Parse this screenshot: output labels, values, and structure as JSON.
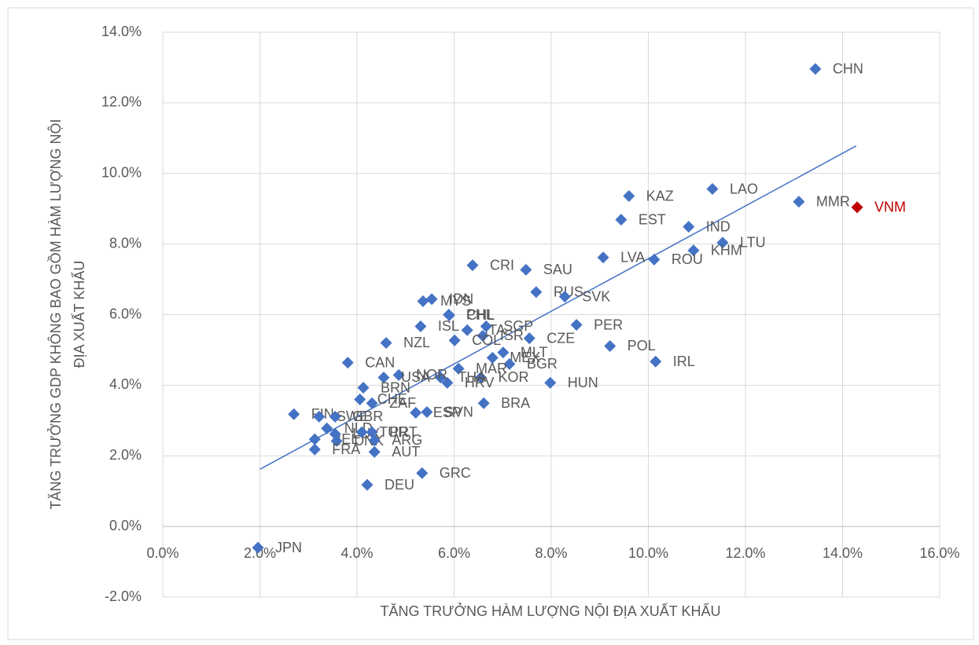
{
  "chart_data": {
    "type": "scatter",
    "xlabel": "TĂNG TRƯỞNG HÀM LƯỢNG NỘI ĐỊA XUẤT KHẨU",
    "ylabel": [
      "TĂNG TRƯỞNG GDP KHÔNG BAO GỒM HÀM LƯỢNG NỘI",
      "ĐỊA XUẤT KHẨU"
    ],
    "xlim": [
      0,
      16
    ],
    "ylim": [
      -2,
      14
    ],
    "xticks": [
      {
        "value": 0,
        "label": "0.0%"
      },
      {
        "value": 2,
        "label": "2.0%"
      },
      {
        "value": 4,
        "label": "4.0%"
      },
      {
        "value": 6,
        "label": "6.0%"
      },
      {
        "value": 8,
        "label": "8.0%"
      },
      {
        "value": 10,
        "label": "10.0%"
      },
      {
        "value": 12,
        "label": "12.0%"
      },
      {
        "value": 14,
        "label": "14.0%"
      },
      {
        "value": 16,
        "label": "16.0%"
      }
    ],
    "yticks": [
      {
        "value": -2,
        "label": "-2.0%"
      },
      {
        "value": 0,
        "label": "0.0%"
      },
      {
        "value": 2,
        "label": "2.0%"
      },
      {
        "value": 4,
        "label": "4.0%"
      },
      {
        "value": 6,
        "label": "6.0%"
      },
      {
        "value": 8,
        "label": "8.0%"
      },
      {
        "value": 10,
        "label": "10.0%"
      },
      {
        "value": 12,
        "label": "12.0%"
      },
      {
        "value": 14,
        "label": "14.0%"
      }
    ],
    "grid": true,
    "color": "#4472c4",
    "label_color": "#595959",
    "trendline": {
      "x": [
        2.0,
        14.28
      ],
      "y": [
        1.62,
        10.78
      ],
      "color": "#4472c4"
    },
    "points": [
      {
        "label": "CHN",
        "x": 13.44,
        "y": 12.96
      },
      {
        "label": "KAZ",
        "x": 9.6,
        "y": 9.36
      },
      {
        "label": "LAO",
        "x": 11.32,
        "y": 9.56
      },
      {
        "label": "MMR",
        "x": 13.1,
        "y": 9.2
      },
      {
        "label": "VNM",
        "x": 14.3,
        "y": 9.04,
        "color": "#c00000"
      },
      {
        "label": "EST",
        "x": 9.44,
        "y": 8.69
      },
      {
        "label": "IND",
        "x": 10.83,
        "y": 8.49
      },
      {
        "label": "LTU",
        "x": 11.53,
        "y": 8.04
      },
      {
        "label": "KHM",
        "x": 10.93,
        "y": 7.82
      },
      {
        "label": "LVA",
        "x": 9.07,
        "y": 7.62
      },
      {
        "label": "ROU",
        "x": 10.12,
        "y": 7.56
      },
      {
        "label": "CRI",
        "x": 6.38,
        "y": 7.4
      },
      {
        "label": "SAU",
        "x": 7.48,
        "y": 7.27
      },
      {
        "label": "RUS",
        "x": 7.69,
        "y": 6.64
      },
      {
        "label": "SVK",
        "x": 8.28,
        "y": 6.51
      },
      {
        "label": "MYS",
        "x": 5.36,
        "y": 6.38
      },
      {
        "label": "IDN",
        "x": 5.54,
        "y": 6.44
      },
      {
        "label": "PHL",
        "x": 5.89,
        "y": 6.0
      },
      {
        "label": "CHL",
        "x": 5.9,
        "y": 5.98
      },
      {
        "label": "ISL",
        "x": 5.31,
        "y": 5.67
      },
      {
        "label": "NZL",
        "x": 4.6,
        "y": 5.2
      },
      {
        "label": "ITA",
        "x": 6.27,
        "y": 5.56
      },
      {
        "label": "ISR",
        "x": 6.59,
        "y": 5.4
      },
      {
        "label": "SGP",
        "x": 6.66,
        "y": 5.67
      },
      {
        "label": "COL",
        "x": 6.01,
        "y": 5.27
      },
      {
        "label": "CZE",
        "x": 7.55,
        "y": 5.33
      },
      {
        "label": "PER",
        "x": 8.52,
        "y": 5.71
      },
      {
        "label": "POL",
        "x": 9.21,
        "y": 5.11
      },
      {
        "label": "IRL",
        "x": 10.15,
        "y": 4.67
      },
      {
        "label": "HUN",
        "x": 7.98,
        "y": 4.07
      },
      {
        "label": "BRA",
        "x": 6.61,
        "y": 3.49
      },
      {
        "label": "MLT",
        "x": 7.01,
        "y": 4.93
      },
      {
        "label": "MEX",
        "x": 6.79,
        "y": 4.78
      },
      {
        "label": "BGR",
        "x": 7.14,
        "y": 4.6
      },
      {
        "label": "KOR",
        "x": 6.55,
        "y": 4.22
      },
      {
        "label": "MAR",
        "x": 6.09,
        "y": 4.47
      },
      {
        "label": "THA",
        "x": 5.72,
        "y": 4.22
      },
      {
        "label": "HRV",
        "x": 5.86,
        "y": 4.07
      },
      {
        "label": "NOR",
        "x": 4.86,
        "y": 4.29
      },
      {
        "label": "USA",
        "x": 4.55,
        "y": 4.22
      },
      {
        "label": "CAN",
        "x": 3.81,
        "y": 4.64
      },
      {
        "label": "BRN",
        "x": 4.13,
        "y": 3.93
      },
      {
        "label": "CHE",
        "x": 4.06,
        "y": 3.6
      },
      {
        "label": "ZAF",
        "x": 4.31,
        "y": 3.49
      },
      {
        "label": "FIN",
        "x": 2.7,
        "y": 3.18
      },
      {
        "label": "SWE",
        "x": 3.22,
        "y": 3.11
      },
      {
        "label": "GBR",
        "x": 3.55,
        "y": 3.11
      },
      {
        "label": "NLD",
        "x": 3.38,
        "y": 2.78
      },
      {
        "label": "BEL",
        "x": 3.13,
        "y": 2.47
      },
      {
        "label": "LUX",
        "x": 3.55,
        "y": 2.62
      },
      {
        "label": "DNK",
        "x": 3.58,
        "y": 2.42
      },
      {
        "label": "TUR",
        "x": 4.1,
        "y": 2.67
      },
      {
        "label": "PRT",
        "x": 4.31,
        "y": 2.67
      },
      {
        "label": "ARG",
        "x": 4.36,
        "y": 2.44
      },
      {
        "label": "FRA",
        "x": 3.13,
        "y": 2.18
      },
      {
        "label": "AUT",
        "x": 4.36,
        "y": 2.11
      },
      {
        "label": "DEU",
        "x": 4.21,
        "y": 1.18
      },
      {
        "label": "GRC",
        "x": 5.34,
        "y": 1.51
      },
      {
        "label": "ESP",
        "x": 5.21,
        "y": 3.22
      },
      {
        "label": "SVN",
        "x": 5.44,
        "y": 3.24
      },
      {
        "label": "JPN",
        "x": 1.96,
        "y": -0.6
      }
    ]
  }
}
